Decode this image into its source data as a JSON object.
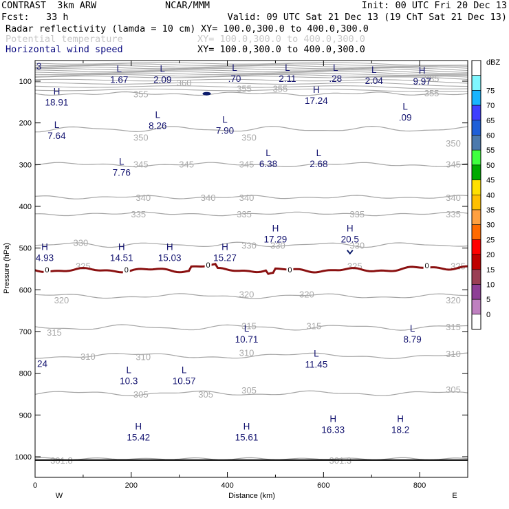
{
  "header": {
    "model": "CONTRAST  3km ARW",
    "org": "NCAR/MMM",
    "init": "Init: 00 UTC Fri 20 Dec 13",
    "fcst": "Fcst:   33 h",
    "valid": "Valid: 09 UTC Sat 21 Dec 13 (19 ChT Sat 21 Dec 13)",
    "field1": "Radar reflectivity (lamda = 10 cm)",
    "field1_xy": "XY= 100.0,300.0 to 400.0,300.0",
    "field2": "Potential temperature",
    "field2_xy": "XY= 100.0,300.0 to 400.0,300.0",
    "field3": "Horizontal wind speed",
    "field3_xy": "XY= 100.0,300.0 to 400.0,300.0"
  },
  "colorbar": {
    "unit": "dBZ",
    "levels": [
      "0",
      "5",
      "10",
      "15",
      "20",
      "25",
      "30",
      "35",
      "40",
      "45",
      "50",
      "55",
      "60",
      "65",
      "70",
      "75"
    ],
    "colors": [
      "#ffffff",
      "#7ff7ff",
      "#19b4ff",
      "#3f3fff",
      "#1e5fd8",
      "#4c7aad",
      "#3fff3f",
      "#00aa00",
      "#ffe000",
      "#ffc000",
      "#ffa040",
      "#ff6a00",
      "#ff0000",
      "#bf0000",
      "#9b3f55",
      "#8e3f96",
      "#bf80c0",
      "#ffffff"
    ]
  },
  "chart_data": {
    "type": "cross-section",
    "xlabel": "Distance (km)",
    "ylabel": "Pressure (hPa)",
    "xlim": [
      0,
      900
    ],
    "ylim_pressure_hPa": [
      1045,
      50
    ],
    "xticks": [
      "0",
      "200",
      "400",
      "600",
      "800"
    ],
    "yticks": [
      "100",
      "200",
      "300",
      "400",
      "500",
      "600",
      "700",
      "800",
      "900",
      "1000"
    ],
    "direction_left": "W",
    "direction_right": "E",
    "theta_labels": [
      {
        "t": "385",
        "x": 825,
        "p": 95
      },
      {
        "t": "360",
        "x": 310,
        "p": 105
      },
      {
        "t": "355",
        "x": 220,
        "p": 132
      },
      {
        "t": "355",
        "x": 435,
        "p": 119
      },
      {
        "t": "355",
        "x": 510,
        "p": 119
      },
      {
        "t": "355",
        "x": 825,
        "p": 130
      },
      {
        "t": "350",
        "x": 220,
        "p": 236
      },
      {
        "t": "350",
        "x": 445,
        "p": 236
      },
      {
        "t": "350",
        "x": 870,
        "p": 250
      },
      {
        "t": "345",
        "x": 220,
        "p": 300
      },
      {
        "t": "345",
        "x": 315,
        "p": 300
      },
      {
        "t": "345",
        "x": 440,
        "p": 300
      },
      {
        "t": "345",
        "x": 870,
        "p": 300
      },
      {
        "t": "340",
        "x": 225,
        "p": 380
      },
      {
        "t": "340",
        "x": 360,
        "p": 380
      },
      {
        "t": "340",
        "x": 440,
        "p": 380
      },
      {
        "t": "340",
        "x": 870,
        "p": 380
      },
      {
        "t": "335",
        "x": 215,
        "p": 420
      },
      {
        "t": "335",
        "x": 435,
        "p": 420
      },
      {
        "t": "335",
        "x": 670,
        "p": 420
      },
      {
        "t": "335",
        "x": 870,
        "p": 420
      },
      {
        "t": "330",
        "x": 95,
        "p": 488
      },
      {
        "t": "330",
        "x": 445,
        "p": 495
      },
      {
        "t": "330",
        "x": 505,
        "p": 495
      },
      {
        "t": "330",
        "x": 670,
        "p": 495
      },
      {
        "t": "325",
        "x": 100,
        "p": 544
      },
      {
        "t": "325",
        "x": 665,
        "p": 544
      },
      {
        "t": "325",
        "x": 880,
        "p": 544
      },
      {
        "t": "320",
        "x": 55,
        "p": 626
      },
      {
        "t": "320",
        "x": 440,
        "p": 612
      },
      {
        "t": "320",
        "x": 565,
        "p": 612
      },
      {
        "t": "320",
        "x": 870,
        "p": 626
      },
      {
        "t": "315",
        "x": 40,
        "p": 703
      },
      {
        "t": "315",
        "x": 445,
        "p": 688
      },
      {
        "t": "315",
        "x": 580,
        "p": 688
      },
      {
        "t": "315",
        "x": 870,
        "p": 690
      },
      {
        "t": "310",
        "x": 110,
        "p": 761
      },
      {
        "t": "310",
        "x": 225,
        "p": 762
      },
      {
        "t": "310",
        "x": 440,
        "p": 752
      },
      {
        "t": "310",
        "x": 870,
        "p": 754
      },
      {
        "t": "305",
        "x": 220,
        "p": 852
      },
      {
        "t": "305",
        "x": 355,
        "p": 852
      },
      {
        "t": "305",
        "x": 445,
        "p": 842
      },
      {
        "t": "305",
        "x": 870,
        "p": 840
      },
      {
        "t": "301.8",
        "x": 55,
        "p": 1010
      },
      {
        "t": "301.3",
        "x": 635,
        "p": 1010
      }
    ],
    "zero_labels": [
      {
        "t": "0",
        "x": 25,
        "p": 552
      },
      {
        "t": "0",
        "x": 190,
        "p": 552
      },
      {
        "t": "0",
        "x": 360,
        "p": 540
      },
      {
        "t": "0",
        "x": 530,
        "p": 552
      },
      {
        "t": "0",
        "x": 815,
        "p": 542
      }
    ],
    "wind_extrema": [
      {
        "k": "L",
        "v": "1.67",
        "x": 175,
        "p": 78
      },
      {
        "k": "L",
        "v": "2.09",
        "x": 265,
        "p": 78
      },
      {
        "k": "L",
        "v": ".70",
        "x": 415,
        "p": 75
      },
      {
        "k": "L",
        "v": "2.11",
        "x": 525,
        "p": 75
      },
      {
        "k": "L",
        "v": ".28",
        "x": 625,
        "p": 75
      },
      {
        "k": "L",
        "v": "2.04",
        "x": 705,
        "p": 80
      },
      {
        "k": "H",
        "v": "9.97",
        "x": 805,
        "p": 82
      },
      {
        "k": "",
        "v": "3",
        "x": 8,
        "p": 72
      },
      {
        "k": "H",
        "v": "18.91",
        "x": 45,
        "p": 132
      },
      {
        "k": "H",
        "v": "17.24",
        "x": 585,
        "p": 128
      },
      {
        "k": "L",
        "v": ".09",
        "x": 770,
        "p": 168
      },
      {
        "k": "L",
        "v": "8.26",
        "x": 255,
        "p": 188
      },
      {
        "k": "L",
        "v": "7.90",
        "x": 395,
        "p": 200
      },
      {
        "k": "L",
        "v": "7.64",
        "x": 45,
        "p": 212
      },
      {
        "k": "L",
        "v": "6.38",
        "x": 485,
        "p": 280
      },
      {
        "k": "L",
        "v": "2.68",
        "x": 590,
        "p": 280
      },
      {
        "k": "L",
        "v": "7.76",
        "x": 180,
        "p": 300
      },
      {
        "k": "H",
        "v": "17.29",
        "x": 500,
        "p": 460
      },
      {
        "k": "H",
        "v": "20.5",
        "x": 655,
        "p": 460
      },
      {
        "k": "H",
        "v": "4.93",
        "x": 20,
        "p": 505
      },
      {
        "k": "H",
        "v": "14.51",
        "x": 180,
        "p": 505
      },
      {
        "k": "H",
        "v": "15.03",
        "x": 280,
        "p": 505
      },
      {
        "k": "H",
        "v": "15.27",
        "x": 395,
        "p": 505
      },
      {
        "k": "L",
        "v": "10.71",
        "x": 440,
        "p": 700
      },
      {
        "k": "L",
        "v": "8.79",
        "x": 785,
        "p": 700
      },
      {
        "k": "L",
        "v": "11.45",
        "x": 585,
        "p": 760
      },
      {
        "k": "",
        "v": "24",
        "x": 15,
        "p": 785
      },
      {
        "k": "L",
        "v": "10.3",
        "x": 195,
        "p": 800
      },
      {
        "k": "L",
        "v": "10.57",
        "x": 310,
        "p": 800
      },
      {
        "k": "H",
        "v": "16.33",
        "x": 620,
        "p": 917
      },
      {
        "k": "H",
        "v": "18.2",
        "x": 760,
        "p": 917
      },
      {
        "k": "H",
        "v": "15.42",
        "x": 215,
        "p": 935
      },
      {
        "k": "H",
        "v": "15.61",
        "x": 440,
        "p": 935
      }
    ],
    "melting_layer_pressure_hPa": 548,
    "surface_pressure_hPa": 1008,
    "grid": false
  }
}
